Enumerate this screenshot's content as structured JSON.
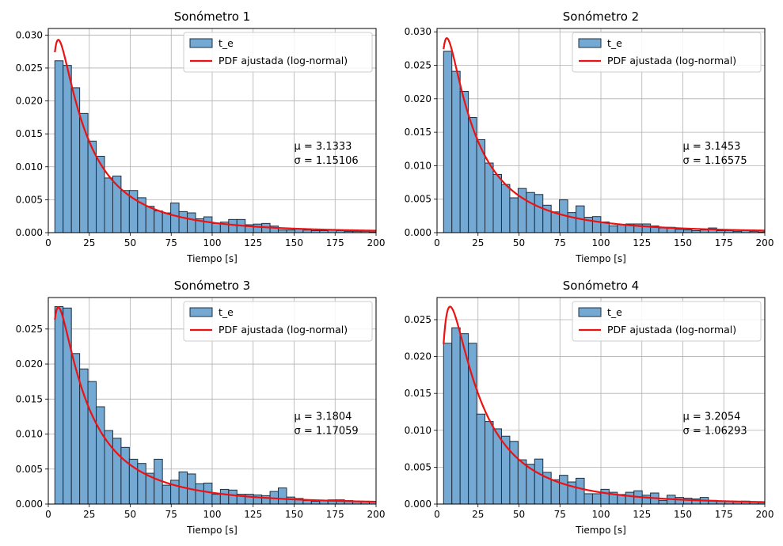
{
  "chart_data": [
    {
      "type": "bar",
      "title": "Sonómetro 1",
      "xlabel": "Tiempo [s]",
      "ylabel": "",
      "xlim": [
        0,
        200
      ],
      "ylim": [
        0,
        0.031
      ],
      "xticks": [
        0,
        25,
        50,
        75,
        100,
        125,
        150,
        175,
        200
      ],
      "yticks": [
        0.0,
        0.005,
        0.01,
        0.015,
        0.02,
        0.025,
        0.03
      ],
      "ytick_labels": [
        "0.000",
        "0.005",
        "0.010",
        "0.015",
        "0.020",
        "0.025",
        "0.030"
      ],
      "grid": true,
      "legend_position": "top-right",
      "legend": [
        "t_e",
        "PDF ajustada (log-normal)"
      ],
      "annotation": [
        "μ = 3.1333",
        "σ = 1.15106"
      ],
      "lognormal": {
        "mu": 3.1333,
        "sigma": 1.15106
      },
      "histogram": {
        "start": 4.0,
        "bin_width": 5.05,
        "values": [
          0.0261,
          0.0254,
          0.022,
          0.0181,
          0.0139,
          0.0116,
          0.0083,
          0.0086,
          0.0064,
          0.0064,
          0.0053,
          0.004,
          0.0033,
          0.003,
          0.0045,
          0.0032,
          0.003,
          0.0021,
          0.0024,
          0.0014,
          0.0016,
          0.002,
          0.002,
          0.0012,
          0.0013,
          0.0014,
          0.001,
          0.0004,
          0.0004,
          0.0006,
          0.0004,
          0.0003,
          0.0003,
          0.0004,
          0.0003,
          0.0002,
          0.0002,
          0.0002,
          0.0001
        ]
      }
    },
    {
      "type": "bar",
      "title": "Sonómetro 2",
      "xlabel": "Tiempo [s]",
      "ylabel": "",
      "xlim": [
        0,
        200
      ],
      "ylim": [
        0,
        0.0305
      ],
      "xticks": [
        0,
        25,
        50,
        75,
        100,
        125,
        150,
        175,
        200
      ],
      "yticks": [
        0.0,
        0.005,
        0.01,
        0.015,
        0.02,
        0.025,
        0.03
      ],
      "ytick_labels": [
        "0.000",
        "0.005",
        "0.010",
        "0.015",
        "0.020",
        "0.025",
        "0.030"
      ],
      "grid": true,
      "legend_position": "top-right",
      "legend": [
        "t_e",
        "PDF ajustada (log-normal)"
      ],
      "annotation": [
        "μ = 3.1453",
        "σ = 1.16575"
      ],
      "lognormal": {
        "mu": 3.1453,
        "sigma": 1.16575
      },
      "histogram": {
        "start": 4.0,
        "bin_width": 5.05,
        "values": [
          0.0271,
          0.0241,
          0.0211,
          0.0172,
          0.0139,
          0.0104,
          0.0087,
          0.0072,
          0.0052,
          0.0066,
          0.006,
          0.0057,
          0.0041,
          0.0031,
          0.0049,
          0.003,
          0.004,
          0.0023,
          0.0024,
          0.0016,
          0.001,
          0.0012,
          0.0013,
          0.0013,
          0.0013,
          0.001,
          0.0007,
          0.0008,
          0.0005,
          0.0004,
          0.0003,
          0.0004,
          0.0007,
          0.0003,
          0.0003,
          0.0002,
          0.0003,
          0.0002,
          0.0001
        ]
      }
    },
    {
      "type": "bar",
      "title": "Sonómetro 3",
      "xlabel": "Tiempo [s]",
      "ylabel": "",
      "xlim": [
        0,
        200
      ],
      "ylim": [
        0,
        0.0295
      ],
      "xticks": [
        0,
        25,
        50,
        75,
        100,
        125,
        150,
        175,
        200
      ],
      "yticks": [
        0.0,
        0.005,
        0.01,
        0.015,
        0.02,
        0.025
      ],
      "ytick_labels": [
        "0.000",
        "0.005",
        "0.010",
        "0.015",
        "0.020",
        "0.025"
      ],
      "grid": true,
      "legend_position": "top-right",
      "legend": [
        "t_e",
        "PDF ajustada (log-normal)"
      ],
      "annotation": [
        "μ = 3.1804",
        "σ = 1.17059"
      ],
      "lognormal": {
        "mu": 3.1804,
        "sigma": 1.17059
      },
      "histogram": {
        "start": 4.0,
        "bin_width": 5.05,
        "values": [
          0.0282,
          0.028,
          0.0215,
          0.0193,
          0.0175,
          0.0139,
          0.0105,
          0.0094,
          0.0081,
          0.0064,
          0.0058,
          0.0044,
          0.0064,
          0.0027,
          0.0034,
          0.0046,
          0.0043,
          0.0029,
          0.003,
          0.0014,
          0.0021,
          0.002,
          0.0014,
          0.0014,
          0.0013,
          0.0012,
          0.0018,
          0.0023,
          0.001,
          0.0008,
          0.0005,
          0.0004,
          0.0005,
          0.0006,
          0.0006,
          0.0005,
          0.0004,
          0.0004,
          0.0003
        ]
      }
    },
    {
      "type": "bar",
      "title": "Sonómetro 4",
      "xlabel": "Tiempo [s]",
      "ylabel": "",
      "xlim": [
        0,
        200
      ],
      "ylim": [
        0,
        0.028
      ],
      "xticks": [
        0,
        25,
        50,
        75,
        100,
        125,
        150,
        175,
        200
      ],
      "yticks": [
        0.0,
        0.005,
        0.01,
        0.015,
        0.02,
        0.025
      ],
      "ytick_labels": [
        "0.000",
        "0.005",
        "0.010",
        "0.015",
        "0.020",
        "0.025"
      ],
      "grid": true,
      "legend_position": "top-right",
      "legend": [
        "t_e",
        "PDF ajustada (log-normal)"
      ],
      "annotation": [
        "μ = 3.2054",
        "σ = 1.06293"
      ],
      "lognormal": {
        "mu": 3.2054,
        "sigma": 1.06293
      },
      "histogram": {
        "start": 4.0,
        "bin_width": 5.05,
        "values": [
          0.0218,
          0.0239,
          0.0231,
          0.0218,
          0.0122,
          0.0112,
          0.0102,
          0.0092,
          0.0085,
          0.006,
          0.0054,
          0.0061,
          0.0043,
          0.0033,
          0.0039,
          0.003,
          0.0035,
          0.0014,
          0.0014,
          0.002,
          0.0016,
          0.0013,
          0.0016,
          0.0018,
          0.0012,
          0.0015,
          0.0005,
          0.0012,
          0.0009,
          0.0008,
          0.0007,
          0.0009,
          0.0005,
          0.0004,
          0.0004,
          0.0003,
          0.0004,
          0.0003,
          0.0002
        ]
      }
    }
  ],
  "style": {
    "bar_fill": "#73a9d3",
    "bar_edge": "#1f2f3f",
    "curve_color": "#ee1111",
    "grid_color": "#b0b0b0"
  }
}
